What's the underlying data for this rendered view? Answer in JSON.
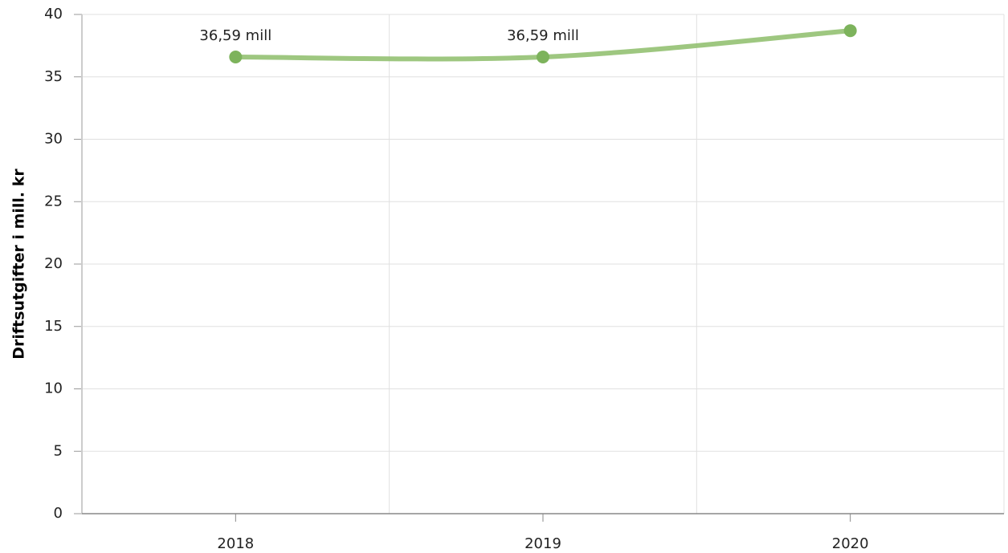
{
  "chart_data": {
    "type": "line",
    "y_label": "Driftsutgifter i mill. kr",
    "categories": [
      "2018",
      "2019",
      "2020"
    ],
    "series": [
      {
        "name": "Driftsutgifter",
        "color": "#8dbd6a",
        "values": [
          36.59,
          36.59,
          38.7
        ],
        "value_labels": [
          "36,59 mill",
          "36,59 mill",
          null
        ]
      }
    ],
    "ylim": [
      0,
      40
    ],
    "yticks": [
      0,
      5,
      10,
      15,
      20,
      25,
      30,
      35,
      40
    ],
    "grid": true
  }
}
